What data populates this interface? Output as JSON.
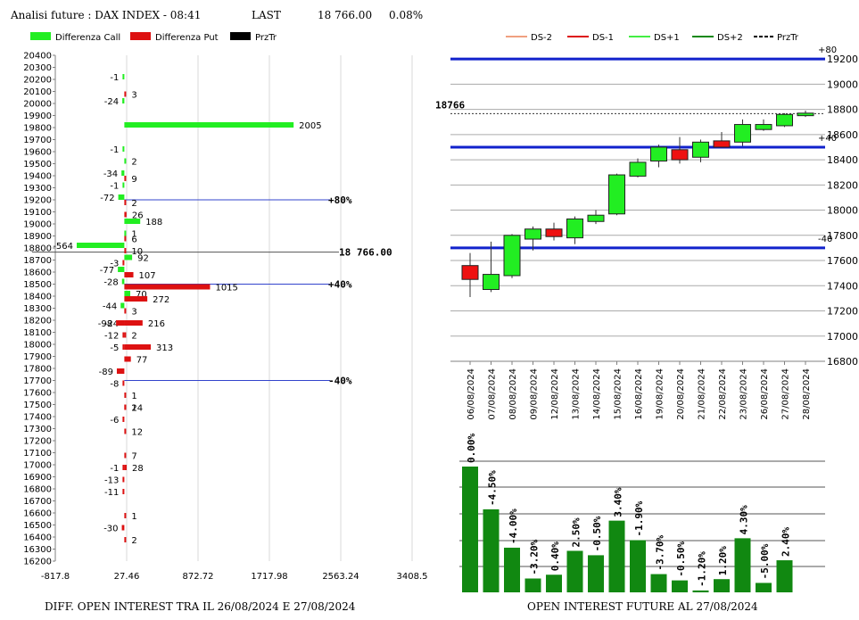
{
  "header": {
    "title": "Analisi future : DAX INDEX - 08:41",
    "last_label": "LAST",
    "last_value": "18 766.00",
    "change": "0.08%"
  },
  "left_legend": [
    {
      "label": "Differenza Call",
      "color": "#22ee22"
    },
    {
      "label": "Differenza Put",
      "color": "#dd1111"
    },
    {
      "label": "PrzTr",
      "color": "#000000"
    }
  ],
  "right_legend": [
    {
      "label": "DS-2",
      "color": "#f0a080",
      "style": "solid"
    },
    {
      "label": "DS-1",
      "color": "#dd1111",
      "style": "solid"
    },
    {
      "label": "DS+1",
      "color": "#44ee44",
      "style": "solid"
    },
    {
      "label": "DS+2",
      "color": "#118811",
      "style": "solid"
    },
    {
      "label": "PrzTr",
      "color": "#000000",
      "style": "dashed"
    }
  ],
  "footers": {
    "left": "DIFF. OPEN INTEREST TRA IL 26/08/2024 E 27/08/2024",
    "right": "OPEN INTEREST FUTURE AL 27/08/2024"
  },
  "chart_data": [
    {
      "type": "bar",
      "orientation": "horizontal",
      "xlim": [
        -817.8,
        3408.5
      ],
      "x_ticks": [
        "-817.8",
        "27.46",
        "872.72",
        "1717.98",
        "2563.24",
        "3408.5"
      ],
      "grid": true,
      "strikes": [
        20400,
        20300,
        20200,
        20100,
        20000,
        19900,
        19800,
        19700,
        19600,
        19500,
        19400,
        19300,
        19200,
        19100,
        19000,
        18900,
        18800,
        18700,
        18600,
        18500,
        18400,
        18300,
        18200,
        18100,
        18000,
        17900,
        17800,
        17700,
        17600,
        17500,
        17400,
        17300,
        17200,
        17100,
        17000,
        16900,
        16800,
        16700,
        16600,
        16500,
        16400,
        16300,
        16200
      ],
      "series": [
        {
          "name": "Differenza Call",
          "color": "#22ee22",
          "points": [
            {
              "strike": 20200,
              "value": -1
            },
            {
              "strike": 20000,
              "value": -24
            },
            {
              "strike": 19800,
              "value": 2005
            },
            {
              "strike": 19600,
              "value": -1
            },
            {
              "strike": 19500,
              "value": 2
            },
            {
              "strike": 19400,
              "value": -34
            },
            {
              "strike": 19300,
              "value": -1
            },
            {
              "strike": 19200,
              "value": -72
            },
            {
              "strike": 19000,
              "value": 188
            },
            {
              "strike": 18900,
              "value": 1
            },
            {
              "strike": 18800,
              "value": -564
            },
            {
              "strike": 18700,
              "value": 92
            },
            {
              "strike": 18600,
              "value": -77
            },
            {
              "strike": 18500,
              "value": -28
            },
            {
              "strike": 18400,
              "value": 70
            },
            {
              "strike": 18300,
              "value": -44
            }
          ]
        },
        {
          "name": "Differenza Put",
          "color": "#dd1111",
          "points": [
            {
              "strike": 20100,
              "value": 3
            },
            {
              "strike": 19400,
              "value": 9
            },
            {
              "strike": 19200,
              "value": 2
            },
            {
              "strike": 19100,
              "value": 26
            },
            {
              "strike": 18900,
              "value": 6
            },
            {
              "strike": 18800,
              "value": 10
            },
            {
              "strike": 18700,
              "value": -3
            },
            {
              "strike": 18600,
              "value": 107
            },
            {
              "strike": 18500,
              "value": 1015
            },
            {
              "strike": 18400,
              "value": 272
            },
            {
              "strike": 18300,
              "value": 3
            },
            {
              "strike": 18200,
              "value": 216
            },
            {
              "strike": 18200,
              "value": -24
            },
            {
              "strike": 18200,
              "value": -98
            },
            {
              "strike": 18100,
              "value": 2
            },
            {
              "strike": 18100,
              "value": -12
            },
            {
              "strike": 18000,
              "value": -5
            },
            {
              "strike": 18000,
              "value": 313
            },
            {
              "strike": 17900,
              "value": 77
            },
            {
              "strike": 17800,
              "value": -89
            },
            {
              "strike": 17700,
              "value": -8
            },
            {
              "strike": 17600,
              "value": 1
            },
            {
              "strike": 17500,
              "value": 2
            },
            {
              "strike": 17500,
              "value": 14
            },
            {
              "strike": 17400,
              "value": -6
            },
            {
              "strike": 17300,
              "value": 12
            },
            {
              "strike": 17100,
              "value": 7
            },
            {
              "strike": 17000,
              "value": -1
            },
            {
              "strike": 17000,
              "value": 28
            },
            {
              "strike": 16900,
              "value": -13
            },
            {
              "strike": 16800,
              "value": -11
            },
            {
              "strike": 16600,
              "value": 1
            },
            {
              "strike": 16500,
              "value": -30
            },
            {
              "strike": 16400,
              "value": 2
            }
          ]
        }
      ],
      "reference_lines": [
        {
          "strike": 19200,
          "label": "+80%"
        },
        {
          "strike": 18500,
          "label": "+40%"
        },
        {
          "strike": 17700,
          "label": "-40%"
        }
      ],
      "price_line": {
        "value": 18766,
        "label": "18 766.00"
      }
    },
    {
      "type": "candlestick",
      "ylim": [
        16800,
        19300
      ],
      "y_ticks": [
        16800,
        17000,
        17200,
        17400,
        17600,
        17800,
        18000,
        18200,
        18400,
        18600,
        18800,
        19000,
        19200
      ],
      "dates": [
        "06/08/2024",
        "07/08/2024",
        "08/08/2024",
        "09/08/2024",
        "12/08/2024",
        "13/08/2024",
        "14/08/2024",
        "15/08/2024",
        "16/08/2024",
        "19/08/2024",
        "20/08/2024",
        "21/08/2024",
        "22/08/2024",
        "23/08/2024",
        "26/08/2024",
        "27/08/2024",
        "28/08/2024"
      ],
      "candles": [
        {
          "o": 17560,
          "h": 17660,
          "l": 17310,
          "c": 17450
        },
        {
          "o": 17370,
          "h": 17750,
          "l": 17350,
          "c": 17490
        },
        {
          "o": 17480,
          "h": 17810,
          "l": 17460,
          "c": 17800
        },
        {
          "o": 17770,
          "h": 17870,
          "l": 17680,
          "c": 17850
        },
        {
          "o": 17850,
          "h": 17900,
          "l": 17760,
          "c": 17790
        },
        {
          "o": 17780,
          "h": 17950,
          "l": 17730,
          "c": 17930
        },
        {
          "o": 17910,
          "h": 18000,
          "l": 17890,
          "c": 17960
        },
        {
          "o": 17970,
          "h": 18290,
          "l": 17960,
          "c": 18280
        },
        {
          "o": 18270,
          "h": 18410,
          "l": 18260,
          "c": 18380
        },
        {
          "o": 18390,
          "h": 18520,
          "l": 18340,
          "c": 18500
        },
        {
          "o": 18480,
          "h": 18580,
          "l": 18370,
          "c": 18400
        },
        {
          "o": 18420,
          "h": 18560,
          "l": 18380,
          "c": 18540
        },
        {
          "o": 18550,
          "h": 18620,
          "l": 18500,
          "c": 18500
        },
        {
          "o": 18540,
          "h": 18720,
          "l": 18510,
          "c": 18680
        },
        {
          "o": 18640,
          "h": 18720,
          "l": 18630,
          "c": 18680
        },
        {
          "o": 18670,
          "h": 18770,
          "l": 18660,
          "c": 18760
        },
        {
          "o": 18750,
          "h": 18790,
          "l": 18740,
          "c": 18770
        }
      ],
      "ds_lines": [
        {
          "value": 19200,
          "label": "+80"
        },
        {
          "value": 18500,
          "label": "+40"
        },
        {
          "value": 17700,
          "label": "-40"
        }
      ],
      "price_line": {
        "value": 18766,
        "label": "18766"
      }
    },
    {
      "type": "bar",
      "categories": [
        "06/08/2024",
        "07/08/2024",
        "08/08/2024",
        "09/08/2024",
        "12/08/2024",
        "13/08/2024",
        "14/08/2024",
        "15/08/2024",
        "16/08/2024",
        "19/08/2024",
        "20/08/2024",
        "21/08/2024",
        "22/08/2024",
        "23/08/2024",
        "26/08/2024",
        "27/08/2024",
        "28/08/2024"
      ],
      "values": [
        0.0,
        -4.5,
        -4.0,
        -3.2,
        0.4,
        2.5,
        -0.5,
        3.4,
        -1.9,
        -3.7,
        -0.5,
        -1.2,
        1.2,
        4.3,
        -5.0,
        2.4
      ],
      "labels": [
        "0.00%",
        "-4.50%",
        "-4.00%",
        "-3.20%",
        "0.40%",
        "2.50%",
        "-0.50%",
        "3.40%",
        "-1.90%",
        "-3.70%",
        "-0.50%",
        "-1.20%",
        "1.20%",
        "4.30%",
        "-5.00%",
        "2.40%"
      ],
      "open_interest_relative": [
        1.0,
        0.66,
        0.355,
        0.11,
        0.14,
        0.33,
        0.295,
        0.57,
        0.415,
        0.145,
        0.095,
        0.015,
        0.105,
        0.43,
        0.075,
        0.255
      ],
      "color": "#118811"
    }
  ]
}
